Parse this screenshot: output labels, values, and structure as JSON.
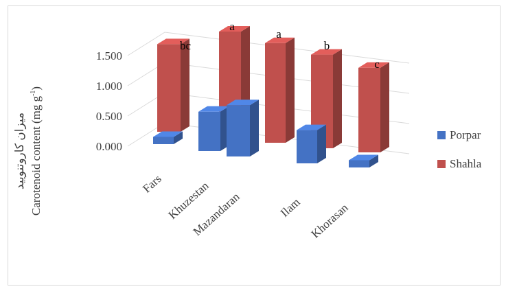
{
  "chart_data": {
    "type": "bar",
    "categories": [
      "Fars",
      "Khuzestan",
      "Mazandaran",
      "Ilam",
      "Khorasan"
    ],
    "series": [
      {
        "name": "Porpar",
        "values": [
          0.12,
          0.65,
          0.85,
          0.55,
          0.12
        ],
        "color": "#4472c4"
      },
      {
        "name": "Shahla",
        "values": [
          1.45,
          1.75,
          1.65,
          1.55,
          1.4
        ],
        "color": "#c0504d"
      }
    ],
    "significance_letters": [
      "bc",
      "a",
      "a",
      "b",
      "c"
    ],
    "ylabel_line1": "میزان کاروتنویید",
    "ylabel_line2": "Carotenoid content (mg g",
    "ylabel_sup": "-1",
    "ylabel_end": ")",
    "yticks": [
      "0.000",
      "0.500",
      "1.000",
      "1.500"
    ],
    "ylim": [
      0,
      1.5
    ],
    "grid": true,
    "legend_position": "right",
    "projection": "3d-perspective"
  }
}
